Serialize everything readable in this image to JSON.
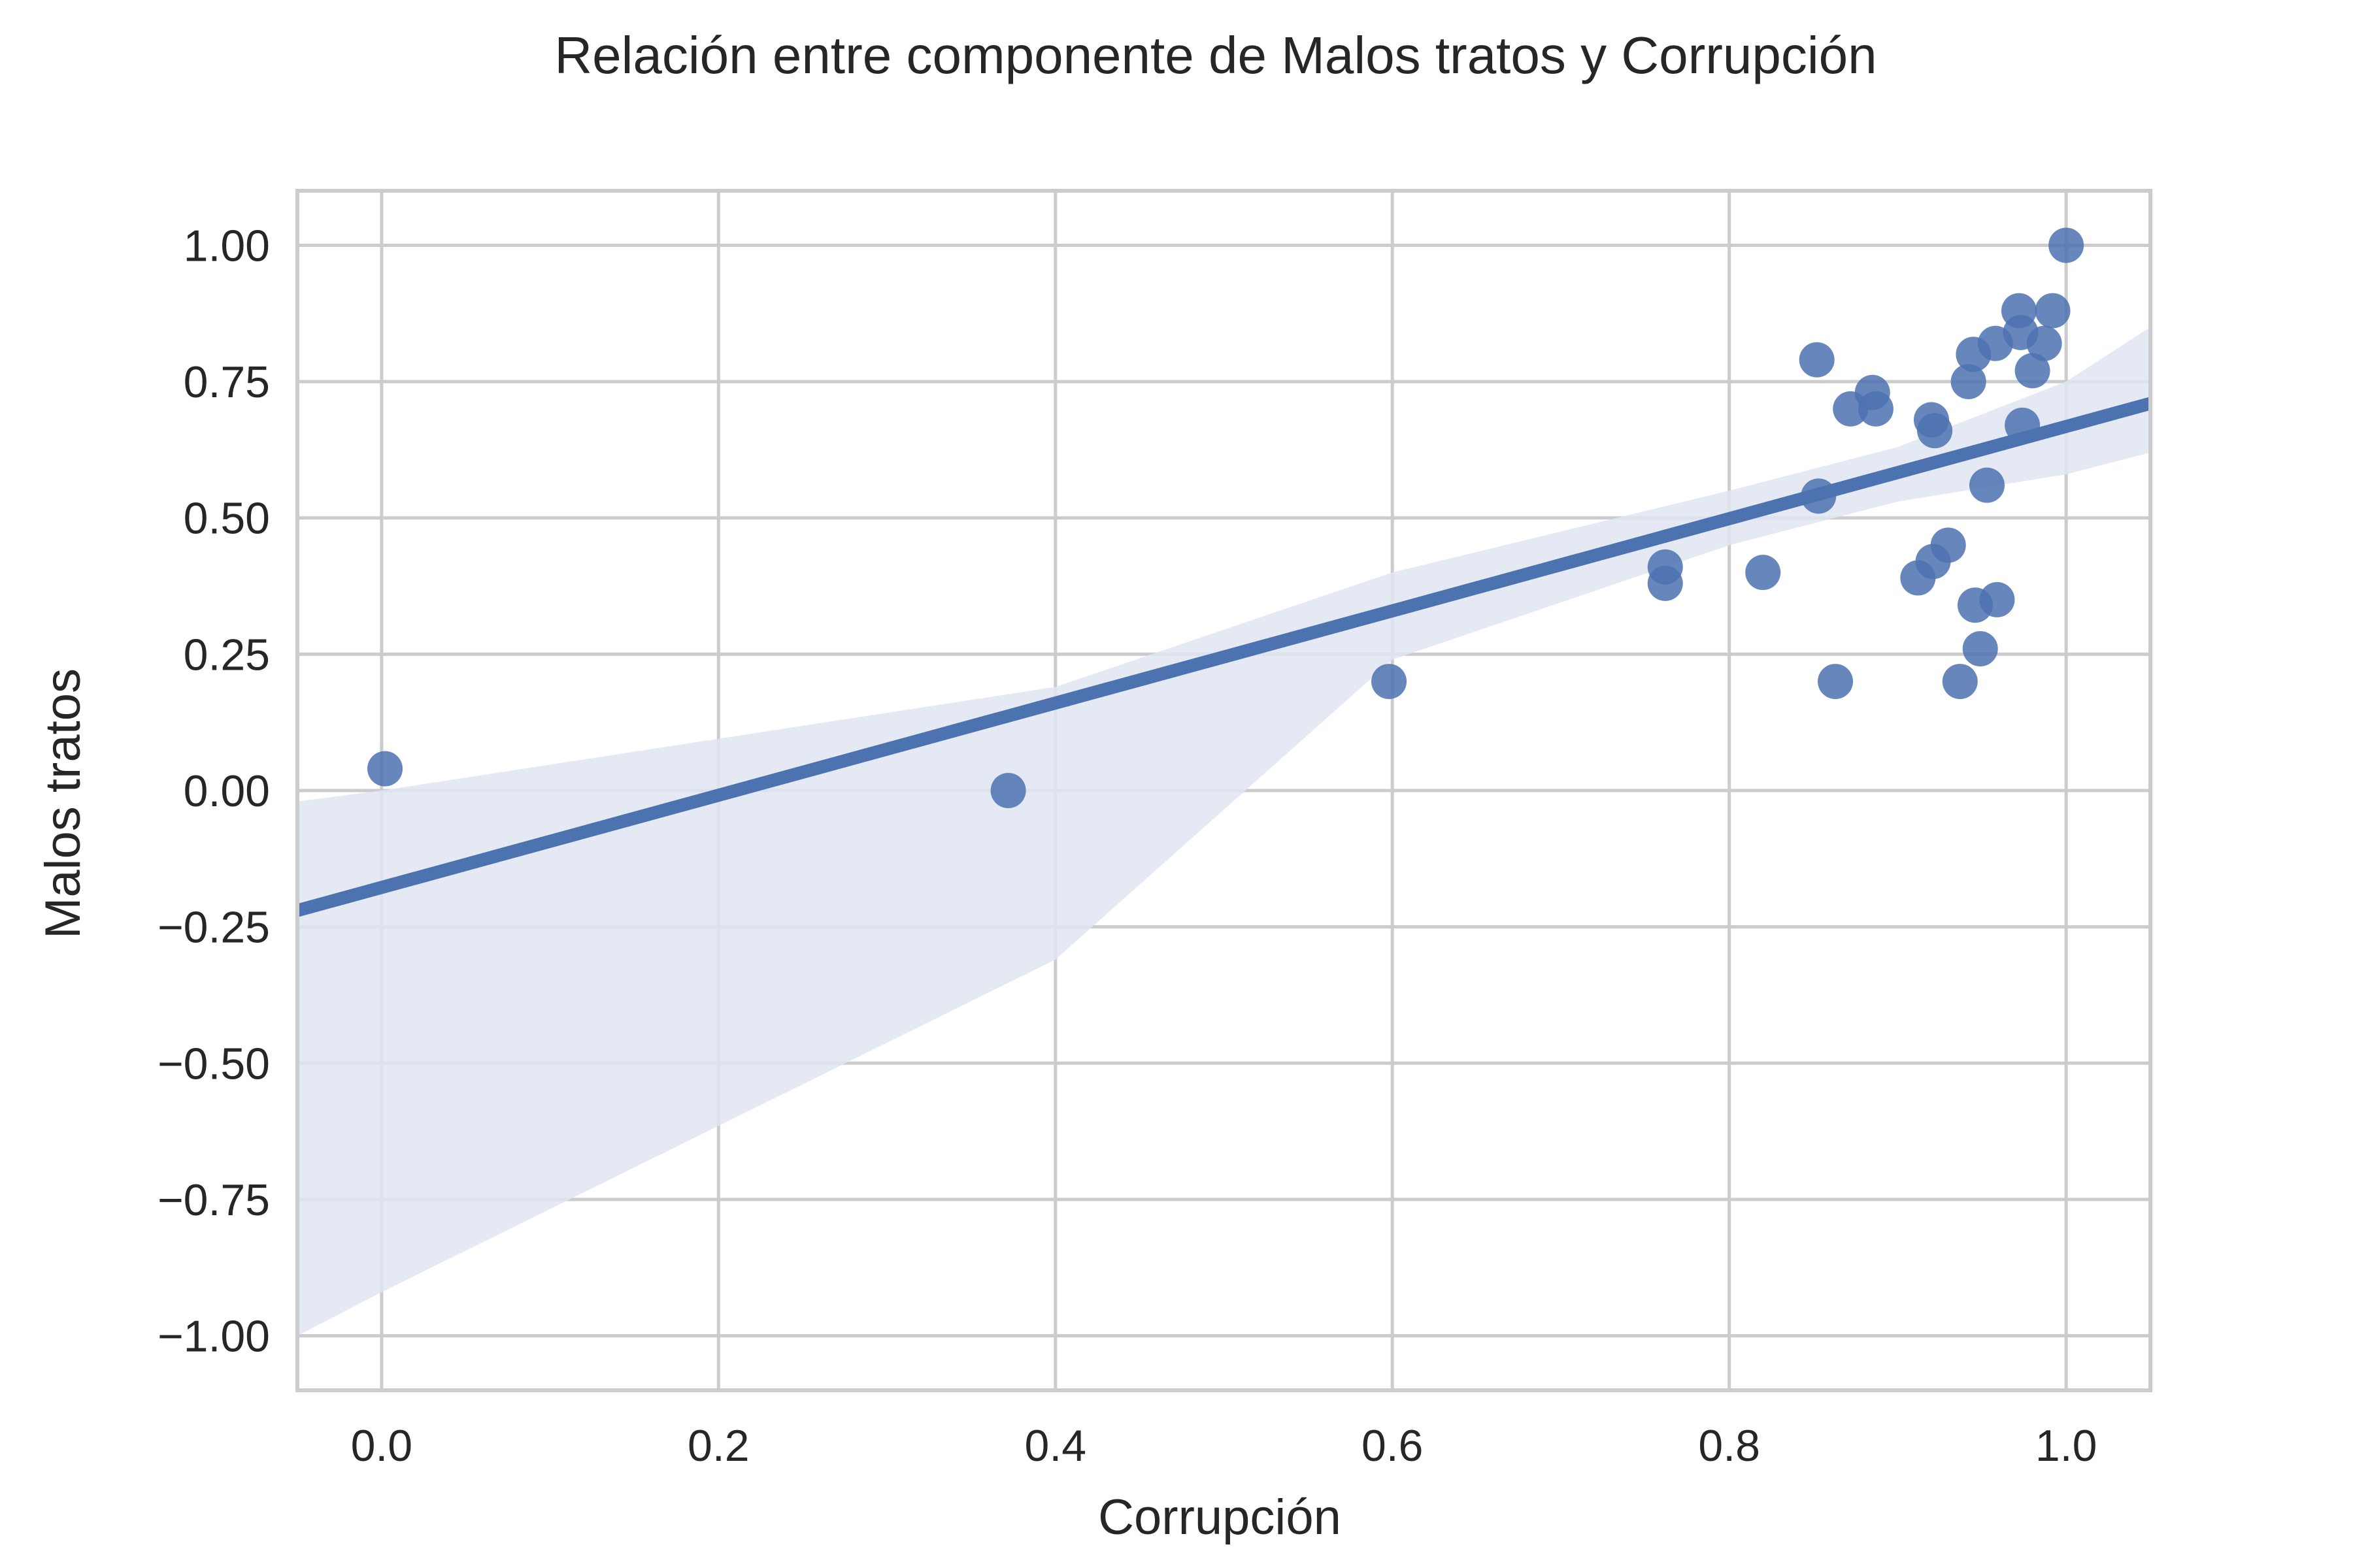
{
  "chart_data": {
    "type": "scatter",
    "title": "Relación entre componente de Malos tratos y Corrupción",
    "xlabel": "Corrupción",
    "ylabel": "Malos tratos",
    "xlim": [
      -0.05,
      1.05
    ],
    "ylim": [
      -1.1,
      1.1
    ],
    "xticks": [
      0.0,
      0.2,
      0.4,
      0.6,
      0.8,
      1.0
    ],
    "xtick_labels": [
      "0.0",
      "0.2",
      "0.4",
      "0.6",
      "0.8",
      "1.0"
    ],
    "yticks": [
      -1.0,
      -0.75,
      -0.5,
      -0.25,
      0.0,
      0.25,
      0.5,
      0.75,
      1.0
    ],
    "ytick_labels": [
      "−1.00",
      "−0.75",
      "−0.50",
      "−0.25",
      "0.00",
      "0.25",
      "0.50",
      "0.75",
      "1.00"
    ],
    "grid": true,
    "colors": {
      "points": "#4c72b0",
      "line": "#4c72b0",
      "band": "#dfe5f2",
      "grid": "#cccccc",
      "spine": "#cccccc"
    },
    "points": [
      {
        "x": 0.002,
        "y": 0.04
      },
      {
        "x": 0.372,
        "y": 0.0
      },
      {
        "x": 0.598,
        "y": 0.2
      },
      {
        "x": 0.762,
        "y": 0.41
      },
      {
        "x": 0.762,
        "y": 0.38
      },
      {
        "x": 0.82,
        "y": 0.4
      },
      {
        "x": 0.852,
        "y": 0.79
      },
      {
        "x": 0.853,
        "y": 0.54
      },
      {
        "x": 0.863,
        "y": 0.2
      },
      {
        "x": 0.872,
        "y": 0.7
      },
      {
        "x": 0.885,
        "y": 0.73
      },
      {
        "x": 0.887,
        "y": 0.7
      },
      {
        "x": 0.912,
        "y": 0.39
      },
      {
        "x": 0.92,
        "y": 0.68
      },
      {
        "x": 0.922,
        "y": 0.66
      },
      {
        "x": 0.921,
        "y": 0.42
      },
      {
        "x": 0.93,
        "y": 0.45
      },
      {
        "x": 0.937,
        "y": 0.2
      },
      {
        "x": 0.942,
        "y": 0.75
      },
      {
        "x": 0.945,
        "y": 0.8
      },
      {
        "x": 0.946,
        "y": 0.34
      },
      {
        "x": 0.949,
        "y": 0.26
      },
      {
        "x": 0.953,
        "y": 0.56
      },
      {
        "x": 0.958,
        "y": 0.82
      },
      {
        "x": 0.959,
        "y": 0.35
      },
      {
        "x": 0.972,
        "y": 0.88
      },
      {
        "x": 0.973,
        "y": 0.84
      },
      {
        "x": 0.974,
        "y": 0.67
      },
      {
        "x": 0.98,
        "y": 0.77
      },
      {
        "x": 0.987,
        "y": 0.82
      },
      {
        "x": 0.992,
        "y": 0.88
      },
      {
        "x": 1.0,
        "y": 1.0
      }
    ],
    "regression": {
      "x": [
        -0.05,
        1.05
      ],
      "y": [
        -0.22,
        0.71
      ]
    },
    "confidence_band": {
      "x": [
        -0.05,
        0.0,
        0.4,
        0.6,
        0.8,
        0.9,
        1.0,
        1.05
      ],
      "upper": [
        -0.02,
        0.0,
        0.19,
        0.4,
        0.55,
        0.63,
        0.75,
        0.85
      ],
      "lower": [
        -1.0,
        -0.92,
        -0.31,
        0.24,
        0.45,
        0.53,
        0.58,
        0.62
      ]
    }
  }
}
